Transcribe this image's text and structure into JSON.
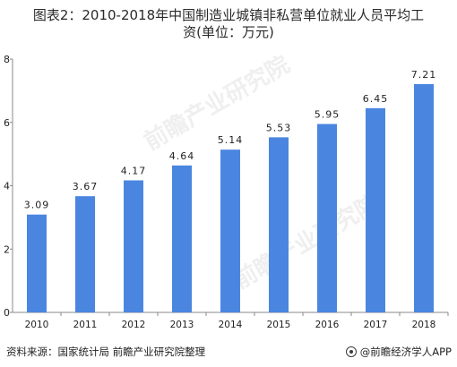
{
  "title": {
    "line1": "图表2：2010-2018年中国制造业城镇非私营单位就业人员平均工",
    "line2": "资(单位：万元)"
  },
  "footer": {
    "source": "资料来源：国家统计局 前瞻产业研究院整理",
    "brand": "@前瞻经济学人APP"
  },
  "watermark": {
    "text": "前瞻产业研究院"
  },
  "colors": {
    "bar": "#4a86e0",
    "axis": "#888888",
    "text": "#222222"
  },
  "chart_data": {
    "type": "bar",
    "categories": [
      "2010",
      "2011",
      "2012",
      "2013",
      "2014",
      "2015",
      "2016",
      "2017",
      "2018"
    ],
    "values": [
      3.09,
      3.67,
      4.17,
      4.64,
      5.14,
      5.53,
      5.95,
      6.45,
      7.21
    ],
    "value_labels": [
      "3.09",
      "3.67",
      "4.17",
      "4.64",
      "5.14",
      "5.53",
      "5.95",
      "6.45",
      "7.21"
    ],
    "ylim": [
      0,
      8
    ],
    "yticks": [
      0,
      2,
      4,
      6,
      8
    ],
    "grid": false,
    "legend": "none"
  }
}
